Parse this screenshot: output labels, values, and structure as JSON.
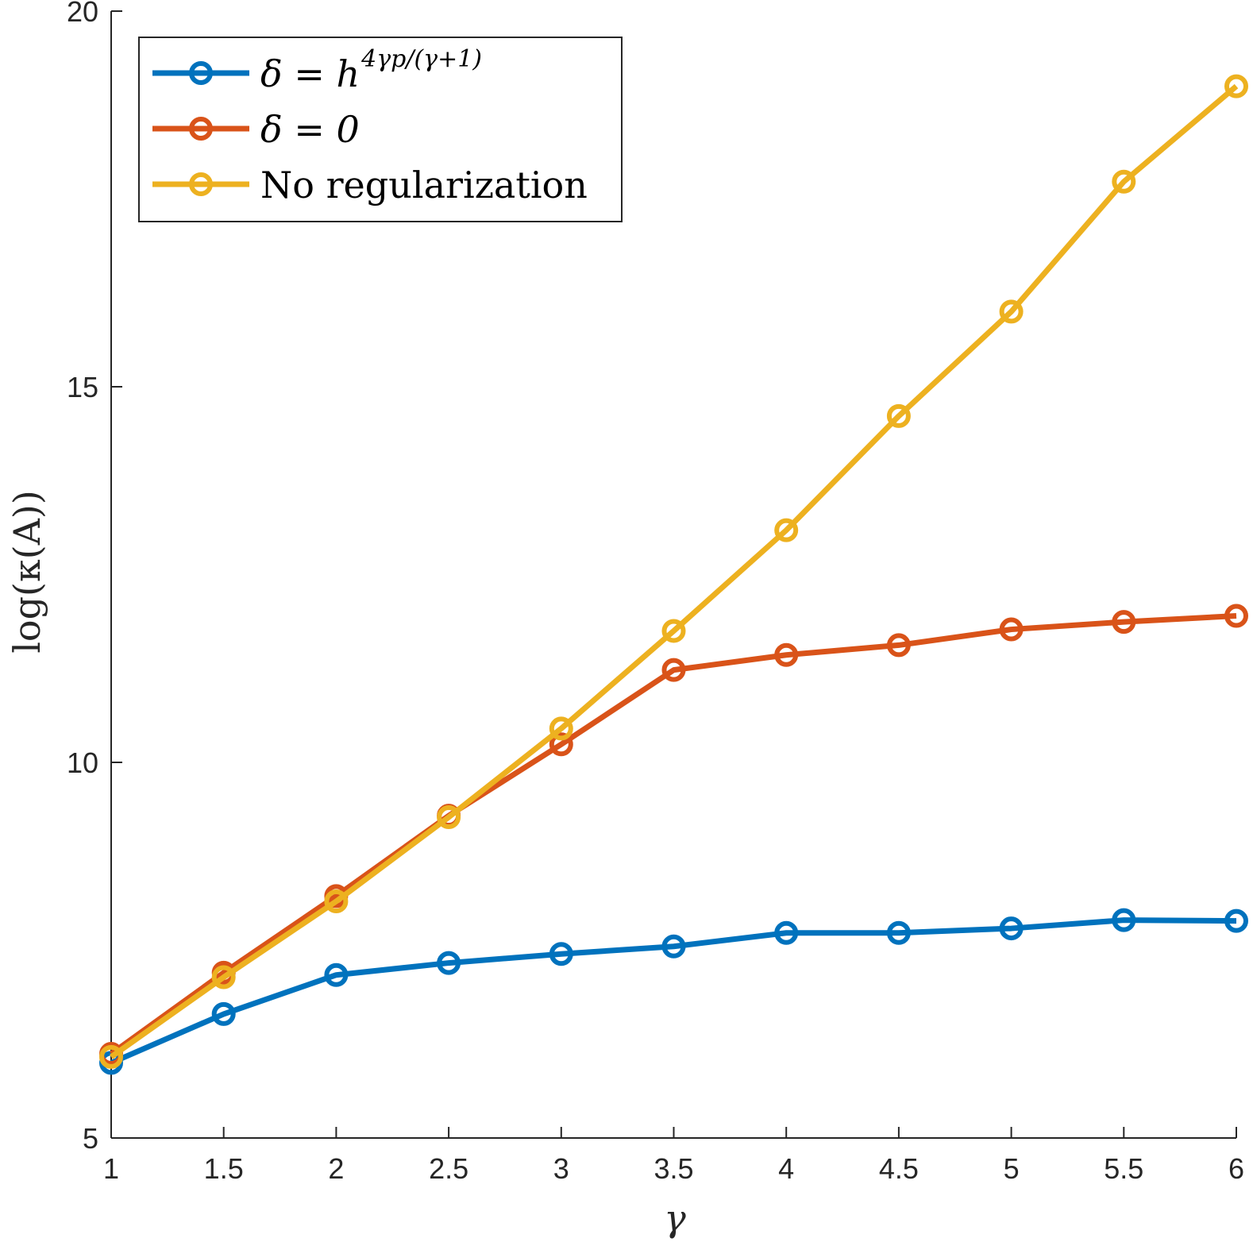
{
  "chart_data": {
    "type": "line",
    "x": [
      1,
      1.5,
      2,
      2.5,
      3,
      3.5,
      4,
      4.5,
      5,
      5.5,
      6
    ],
    "xlabel": "γ",
    "ylabel": "log(κ(A))",
    "xlim": [
      1,
      6
    ],
    "ylim": [
      5,
      20
    ],
    "xticks": [
      "1",
      "1.5",
      "2",
      "2.5",
      "3",
      "3.5",
      "4",
      "4.5",
      "5",
      "5.5",
      "6"
    ],
    "yticks": [
      "5",
      "10",
      "15",
      "20"
    ],
    "grid": false,
    "legend_position": "top-left",
    "series": [
      {
        "name": "δ = h^{4γp/(γ+1)}",
        "legend": {
          "main": "δ = h",
          "sup": "4γp/(γ+1)"
        },
        "color": "#0072BD",
        "values": [
          6.0,
          6.65,
          7.17,
          7.33,
          7.45,
          7.55,
          7.73,
          7.73,
          7.79,
          7.9,
          7.89
        ]
      },
      {
        "name": "δ = 0",
        "legend": {
          "main": "δ = 0",
          "sup": ""
        },
        "color": "#D95319",
        "values": [
          6.12,
          7.2,
          8.22,
          9.29,
          10.24,
          11.23,
          11.43,
          11.56,
          11.77,
          11.87,
          11.95
        ]
      },
      {
        "name": "No regularization",
        "legend": {
          "main": "No regularization",
          "sup": ""
        },
        "color": "#EDB120",
        "values": [
          6.08,
          7.14,
          8.15,
          9.27,
          10.45,
          11.75,
          13.09,
          14.61,
          16.0,
          17.73,
          19.0
        ]
      }
    ]
  }
}
